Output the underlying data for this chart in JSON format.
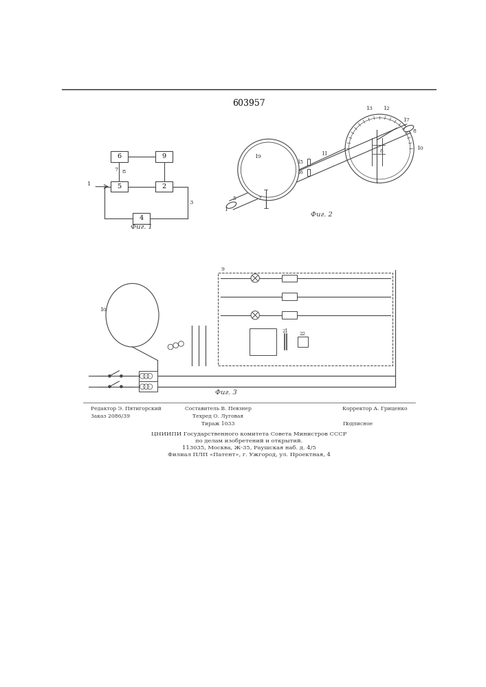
{
  "title": "603957",
  "fig1_caption": "Фиг. 1",
  "fig2_caption": "Фиг. 2",
  "fig3_caption": "Фиг. 3",
  "footer_lines": [
    "ЦНИИПИ Государственного комитета Совета Министров СССР",
    "по делам изобретений и открытий.",
    "113035, Москва, Ж-35, Раушская наб. д. 4/5",
    "Филиал ПЛП «Патент», г. Ужгород, ул. Проектная, 4"
  ],
  "footer_left_col": [
    "Редактор Э. Пятигорский",
    "Заказ 2086/39"
  ],
  "footer_mid_col": [
    "Составитель В. Певзнер",
    "Техред О. Луговая",
    "Тираж 1033"
  ],
  "footer_right_col": [
    "Корректор А. Гриценко",
    "",
    "Подписное"
  ],
  "line_color": "#444444",
  "bg_color": "#ffffff"
}
